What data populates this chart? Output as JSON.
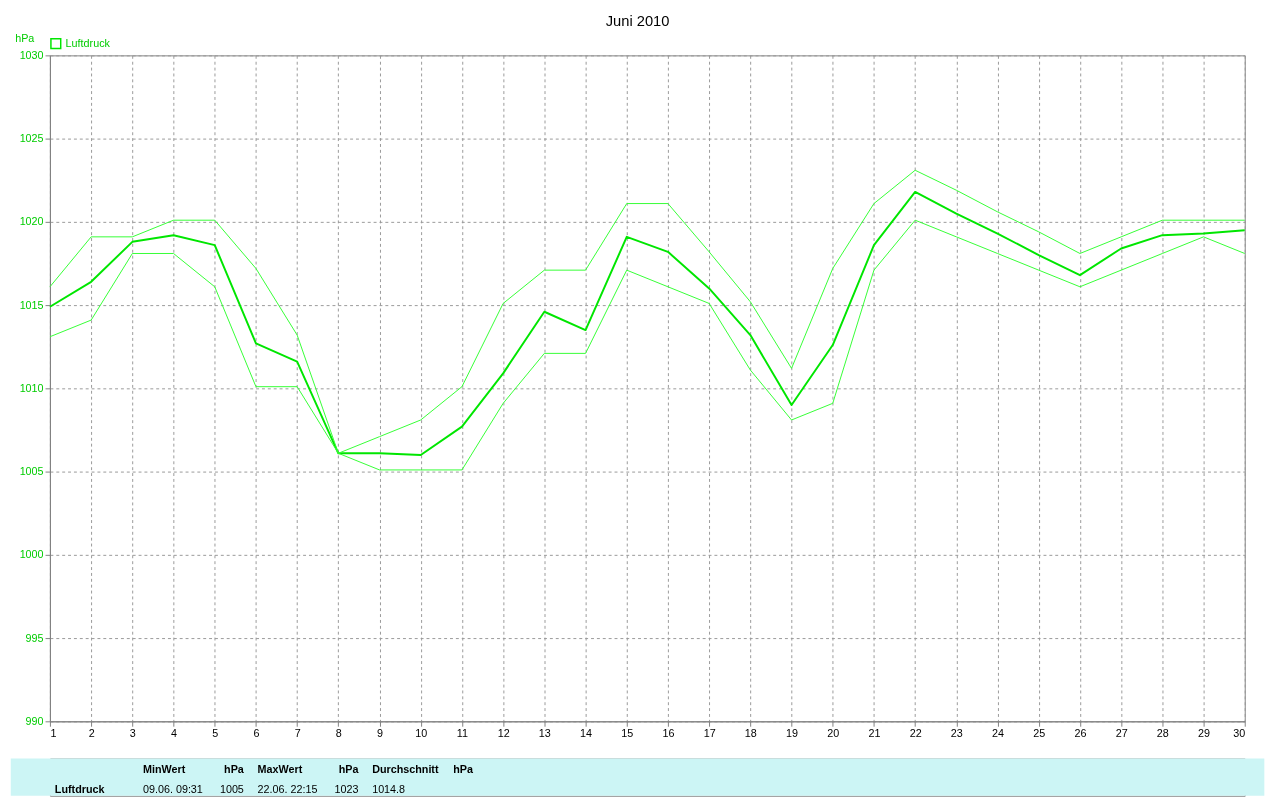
{
  "chart_data": {
    "type": "line",
    "title": "Juni 2010",
    "ylabel": "hPa",
    "x": [
      1,
      2,
      3,
      4,
      5,
      6,
      7,
      8,
      9,
      10,
      11,
      12,
      13,
      14,
      15,
      16,
      17,
      18,
      19,
      20,
      21,
      22,
      23,
      24,
      25,
      26,
      27,
      28,
      29,
      30
    ],
    "series": [
      {
        "name": "Luftdruck",
        "color": "#00e600",
        "values": [
          1014.9,
          1016.4,
          1018.8,
          1019.2,
          1018.6,
          1012.7,
          1011.6,
          1006.1,
          1006.1,
          1006.0,
          1007.7,
          1010.9,
          1014.6,
          1013.5,
          1019.1,
          1018.2,
          1016.0,
          1013.2,
          1009.0,
          1012.6,
          1018.6,
          1021.8,
          1020.5,
          1019.3,
          1018.0,
          1016.8,
          1018.4,
          1019.2,
          1019.3,
          1019.5
        ]
      },
      {
        "color": "#33ff33",
        "values": [
          1016.1,
          1019.1,
          1019.1,
          1020.1,
          1020.1,
          1017.2,
          1013.2,
          1006.1,
          1007.1,
          1008.1,
          1010.1,
          1015.1,
          1017.1,
          1017.1,
          1021.1,
          1021.1,
          1018.2,
          1015.2,
          1011.2,
          1017.2,
          1021.1,
          1023.1,
          1021.9,
          1020.6,
          1019.4,
          1018.1,
          1019.1,
          1020.1,
          1020.1,
          1020.1
        ]
      },
      {
        "color": "#33ff33",
        "values": [
          1013.1,
          1014.1,
          1018.1,
          1018.1,
          1016.1,
          1010.1,
          1010.1,
          1006.1,
          1005.1,
          1005.1,
          1005.1,
          1009.1,
          1012.1,
          1012.1,
          1017.1,
          1016.1,
          1015.1,
          1011.1,
          1008.1,
          1009.1,
          1017.1,
          1020.1,
          1019.1,
          1018.1,
          1017.1,
          1016.1,
          1017.1,
          1018.1,
          1019.1,
          1018.1
        ]
      }
    ],
    "xlim": [
      1,
      30
    ],
    "xticks": [
      1,
      2,
      3,
      4,
      5,
      6,
      7,
      8,
      9,
      10,
      11,
      12,
      13,
      14,
      15,
      16,
      17,
      18,
      19,
      20,
      21,
      22,
      23,
      24,
      25,
      26,
      27,
      28,
      29,
      30
    ],
    "ylim": [
      990,
      1030
    ],
    "yticks": [
      990,
      995,
      1000,
      1005,
      1010,
      1015,
      1020,
      1025,
      1030
    ],
    "grid": true,
    "legend": "top left",
    "marker": "none",
    "line_style": "solid",
    "annotations": [
      "Luftdruck",
      "MinWert",
      "hPa",
      "09.06.  09:31",
      "1005",
      "MaxWert",
      "hPa",
      "22.06.  22:15",
      "1023",
      "Durchschnitt",
      "hPa",
      "1014.8"
    ]
  }
}
